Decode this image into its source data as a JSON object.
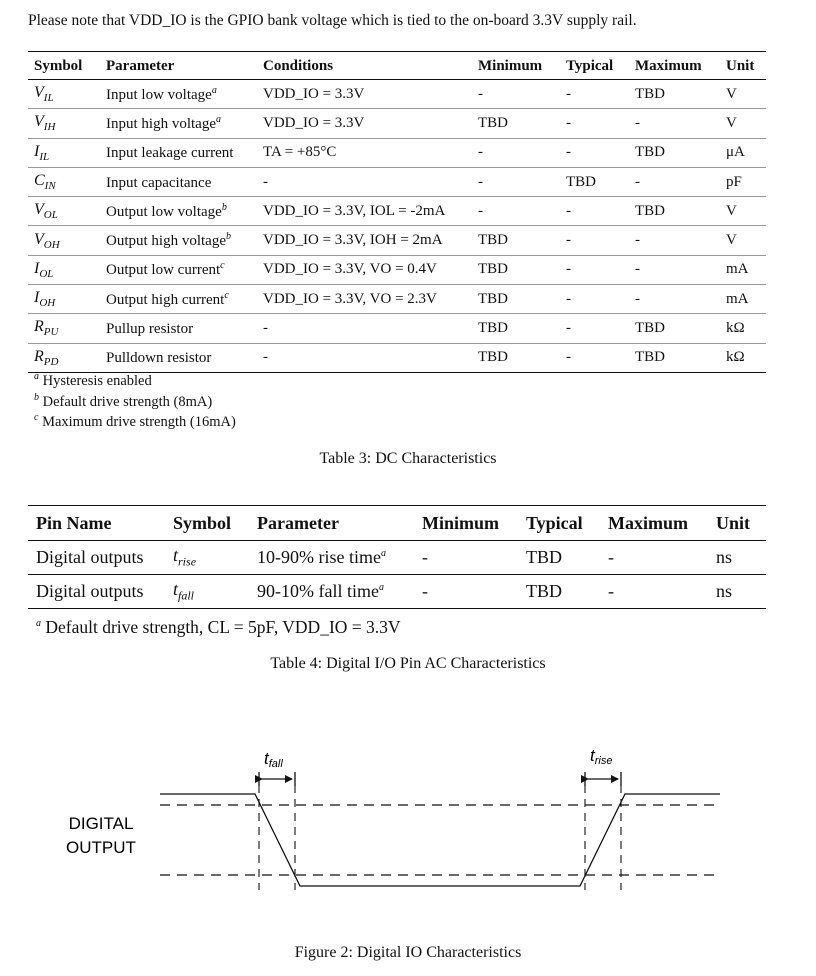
{
  "intro": "Please note that VDD_IO is the GPIO bank voltage which is tied to the on-board 3.3V supply rail.",
  "table3": {
    "headers": [
      "Symbol",
      "Parameter",
      "Conditions",
      "Minimum",
      "Typical",
      "Maximum",
      "Unit"
    ],
    "rows": [
      {
        "sym": "V",
        "sub": "IL",
        "param": "Input low voltage",
        "note": "a",
        "cond": "VDD_IO = 3.3V",
        "min": "-",
        "typ": "-",
        "max": "TBD",
        "unit": "V"
      },
      {
        "sym": "V",
        "sub": "IH",
        "param": "Input high voltage",
        "note": "a",
        "cond": "VDD_IO = 3.3V",
        "min": "TBD",
        "typ": "-",
        "max": "-",
        "unit": "V"
      },
      {
        "sym": "I",
        "sub": "IL",
        "param": "Input leakage current",
        "note": "",
        "cond": "TA = +85°C",
        "min": "-",
        "typ": "-",
        "max": "TBD",
        "unit": "μA"
      },
      {
        "sym": "C",
        "sub": "IN",
        "param": "Input capacitance",
        "note": "",
        "cond": "-",
        "min": "-",
        "typ": "TBD",
        "max": "-",
        "unit": "pF"
      },
      {
        "sym": "V",
        "sub": "OL",
        "param": "Output low voltage",
        "note": "b",
        "cond": "VDD_IO = 3.3V, IOL = -2mA",
        "min": "-",
        "typ": "-",
        "max": "TBD",
        "unit": "V"
      },
      {
        "sym": "V",
        "sub": "OH",
        "param": "Output high voltage",
        "note": "b",
        "cond": "VDD_IO = 3.3V, IOH = 2mA",
        "min": "TBD",
        "typ": "-",
        "max": "-",
        "unit": "V"
      },
      {
        "sym": "I",
        "sub": "OL",
        "param": "Output low current",
        "note": "c",
        "cond": "VDD_IO = 3.3V, VO = 0.4V",
        "min": "TBD",
        "typ": "-",
        "max": "-",
        "unit": "mA"
      },
      {
        "sym": "I",
        "sub": "OH",
        "param": "Output high current",
        "note": "c",
        "cond": "VDD_IO = 3.3V, VO = 2.3V",
        "min": "TBD",
        "typ": "-",
        "max": "-",
        "unit": "mA"
      },
      {
        "sym": "R",
        "sub": "PU",
        "param": "Pullup resistor",
        "note": "",
        "cond": "-",
        "min": "TBD",
        "typ": "-",
        "max": "TBD",
        "unit": "kΩ"
      },
      {
        "sym": "R",
        "sub": "PD",
        "param": "Pulldown resistor",
        "note": "",
        "cond": "-",
        "min": "TBD",
        "typ": "-",
        "max": "TBD",
        "unit": "kΩ"
      }
    ],
    "footnotes": [
      {
        "mark": "a",
        "text": "Hysteresis enabled"
      },
      {
        "mark": "b",
        "text": "Default drive strength (8mA)"
      },
      {
        "mark": "c",
        "text": "Maximum drive strength (16mA)"
      }
    ],
    "caption": "Table 3: DC Characteristics"
  },
  "table4": {
    "headers": [
      "Pin Name",
      "Symbol",
      "Parameter",
      "Minimum",
      "Typical",
      "Maximum",
      "Unit"
    ],
    "rows": [
      {
        "pin": "Digital outputs",
        "sym": "t",
        "sub": "rise",
        "param": "10-90% rise time",
        "note": "a",
        "min": "-",
        "typ": "TBD",
        "max": "-",
        "unit": "ns"
      },
      {
        "pin": "Digital outputs",
        "sym": "t",
        "sub": "fall",
        "param": "90-10% fall time",
        "note": "a",
        "min": "-",
        "typ": "TBD",
        "max": "-",
        "unit": "ns"
      }
    ],
    "footnote": {
      "mark": "a",
      "text": "Default drive strength, CL = 5pF, VDD_IO = 3.3V"
    },
    "caption": "Table 4: Digital I/O Pin AC Characteristics"
  },
  "figure": {
    "label_line1": "DIGITAL",
    "label_line2": "OUTPUT",
    "fall_sym": "t",
    "fall_sub": "fall",
    "rise_sym": "t",
    "rise_sub": "rise",
    "caption": "Figure 2: Digital IO Characteristics"
  }
}
